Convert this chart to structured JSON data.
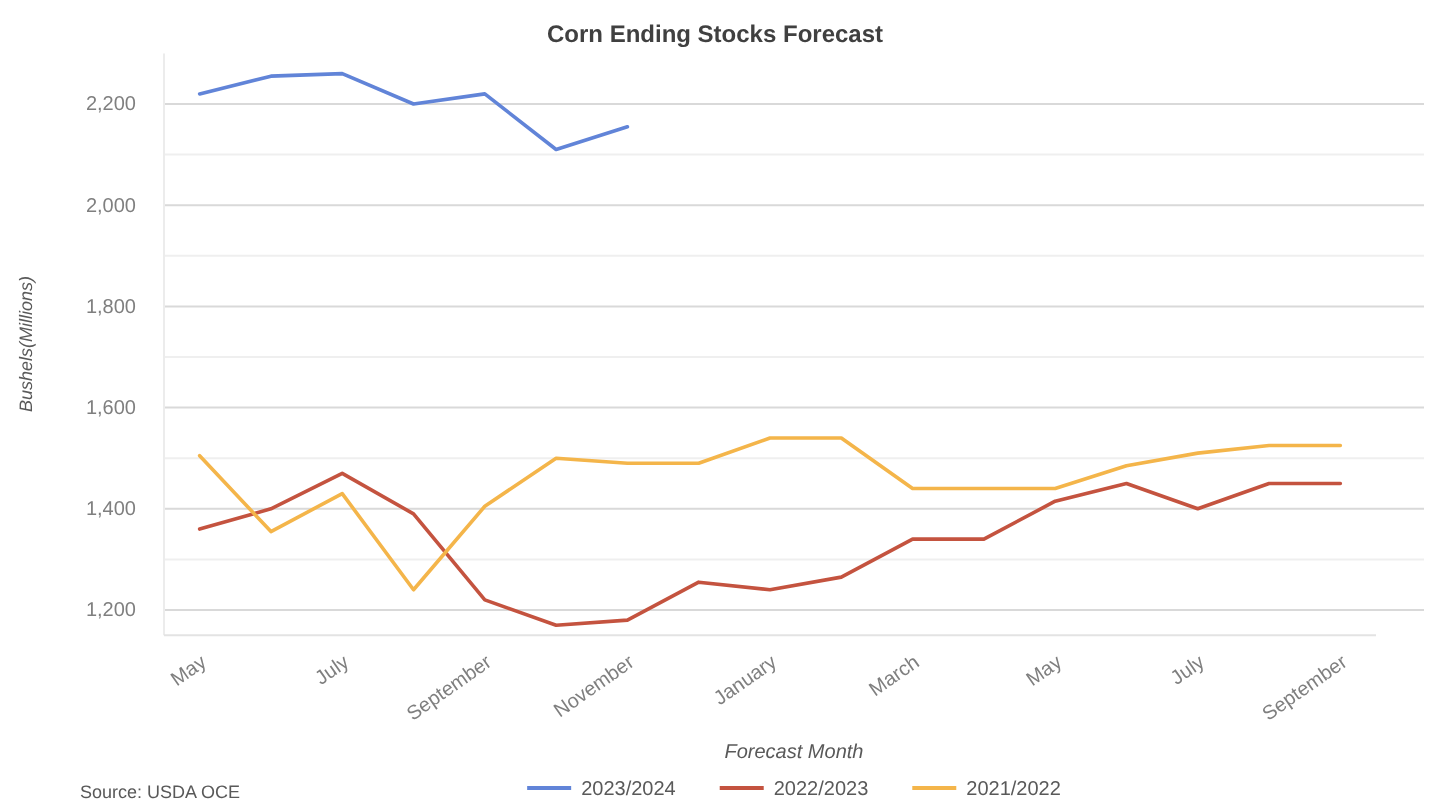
{
  "chart_data": {
    "type": "line",
    "title": "Corn Ending Stocks Forecast",
    "xlabel": "Forecast Month",
    "ylabel": "Bushels(Millions)",
    "annotations": [
      "Source: USDA OCE"
    ],
    "categories": [
      "May",
      null,
      "July",
      null,
      "September",
      null,
      "November",
      null,
      "January",
      null,
      "March",
      null,
      "May",
      null,
      "July",
      null,
      "September"
    ],
    "series": [
      {
        "name": "2023/2024",
        "color": "#6184d8",
        "values": [
          2220,
          2255,
          2260,
          2200,
          2220,
          2110,
          2155,
          null,
          null,
          null,
          null,
          null,
          null,
          null,
          null,
          null,
          null
        ]
      },
      {
        "name": "2022/2023",
        "color": "#c4533f",
        "values": [
          1360,
          1400,
          1470,
          1390,
          1220,
          1170,
          1180,
          1255,
          1240,
          1265,
          1340,
          1340,
          1415,
          1450,
          1400,
          1450,
          1450
        ]
      },
      {
        "name": "2021/2022",
        "color": "#f4b54a",
        "values": [
          1505,
          1355,
          1430,
          1240,
          1405,
          1500,
          1490,
          1490,
          1540,
          1540,
          1440,
          1440,
          1440,
          1485,
          1510,
          1525,
          1525
        ]
      }
    ],
    "ylim": [
      1150,
      2300
    ],
    "yticks": [
      {
        "value": 1200,
        "label": "1,200"
      },
      {
        "value": 1300,
        "label": null
      },
      {
        "value": 1400,
        "label": "1,400"
      },
      {
        "value": 1500,
        "label": null
      },
      {
        "value": 1600,
        "label": "1,600"
      },
      {
        "value": 1700,
        "label": null
      },
      {
        "value": 1800,
        "label": "1,800"
      },
      {
        "value": 1900,
        "label": null
      },
      {
        "value": 2000,
        "label": "2,000"
      },
      {
        "value": 2100,
        "label": null
      },
      {
        "value": 2200,
        "label": "2,200"
      }
    ],
    "grid": "y",
    "legend": "bottom"
  }
}
